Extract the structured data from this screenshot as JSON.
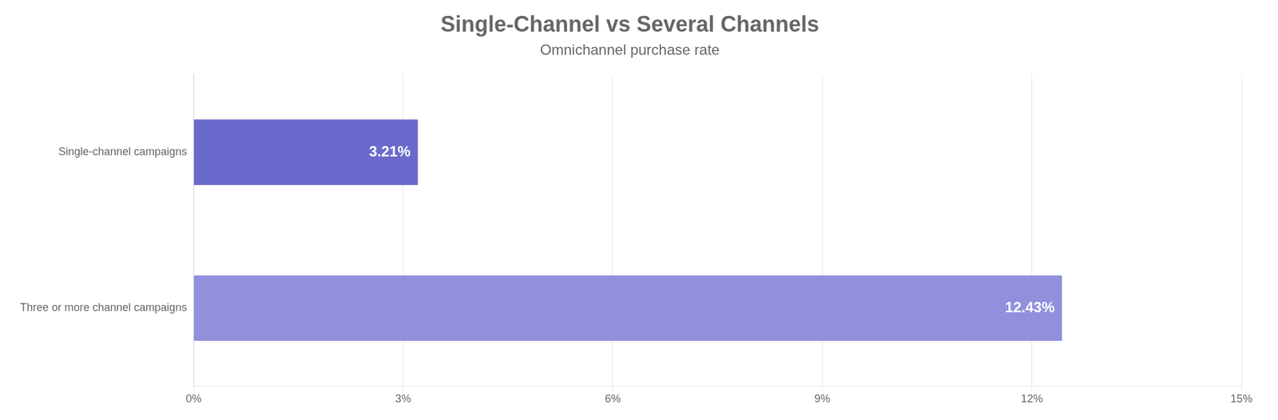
{
  "chart_data": {
    "type": "bar",
    "orientation": "horizontal",
    "title": "Single-Channel vs Several Channels",
    "subtitle": "Omnichannel purchase rate",
    "categories": [
      "Three or more channel campaigns",
      "Single-channel campaigns"
    ],
    "values": [
      12.43,
      3.21
    ],
    "value_labels": [
      "12.43%",
      "3.21%"
    ],
    "colors": [
      "#9090dd",
      "#6a6acc"
    ],
    "xlim": [
      0,
      15
    ],
    "xticks": [
      {
        "value": 0,
        "label": "0%"
      },
      {
        "value": 3,
        "label": "3%"
      },
      {
        "value": 6,
        "label": "6%"
      },
      {
        "value": 9,
        "label": "9%"
      },
      {
        "value": 12,
        "label": "12%"
      },
      {
        "value": 15,
        "label": "15%"
      }
    ],
    "grid": true,
    "data_labels": true
  }
}
